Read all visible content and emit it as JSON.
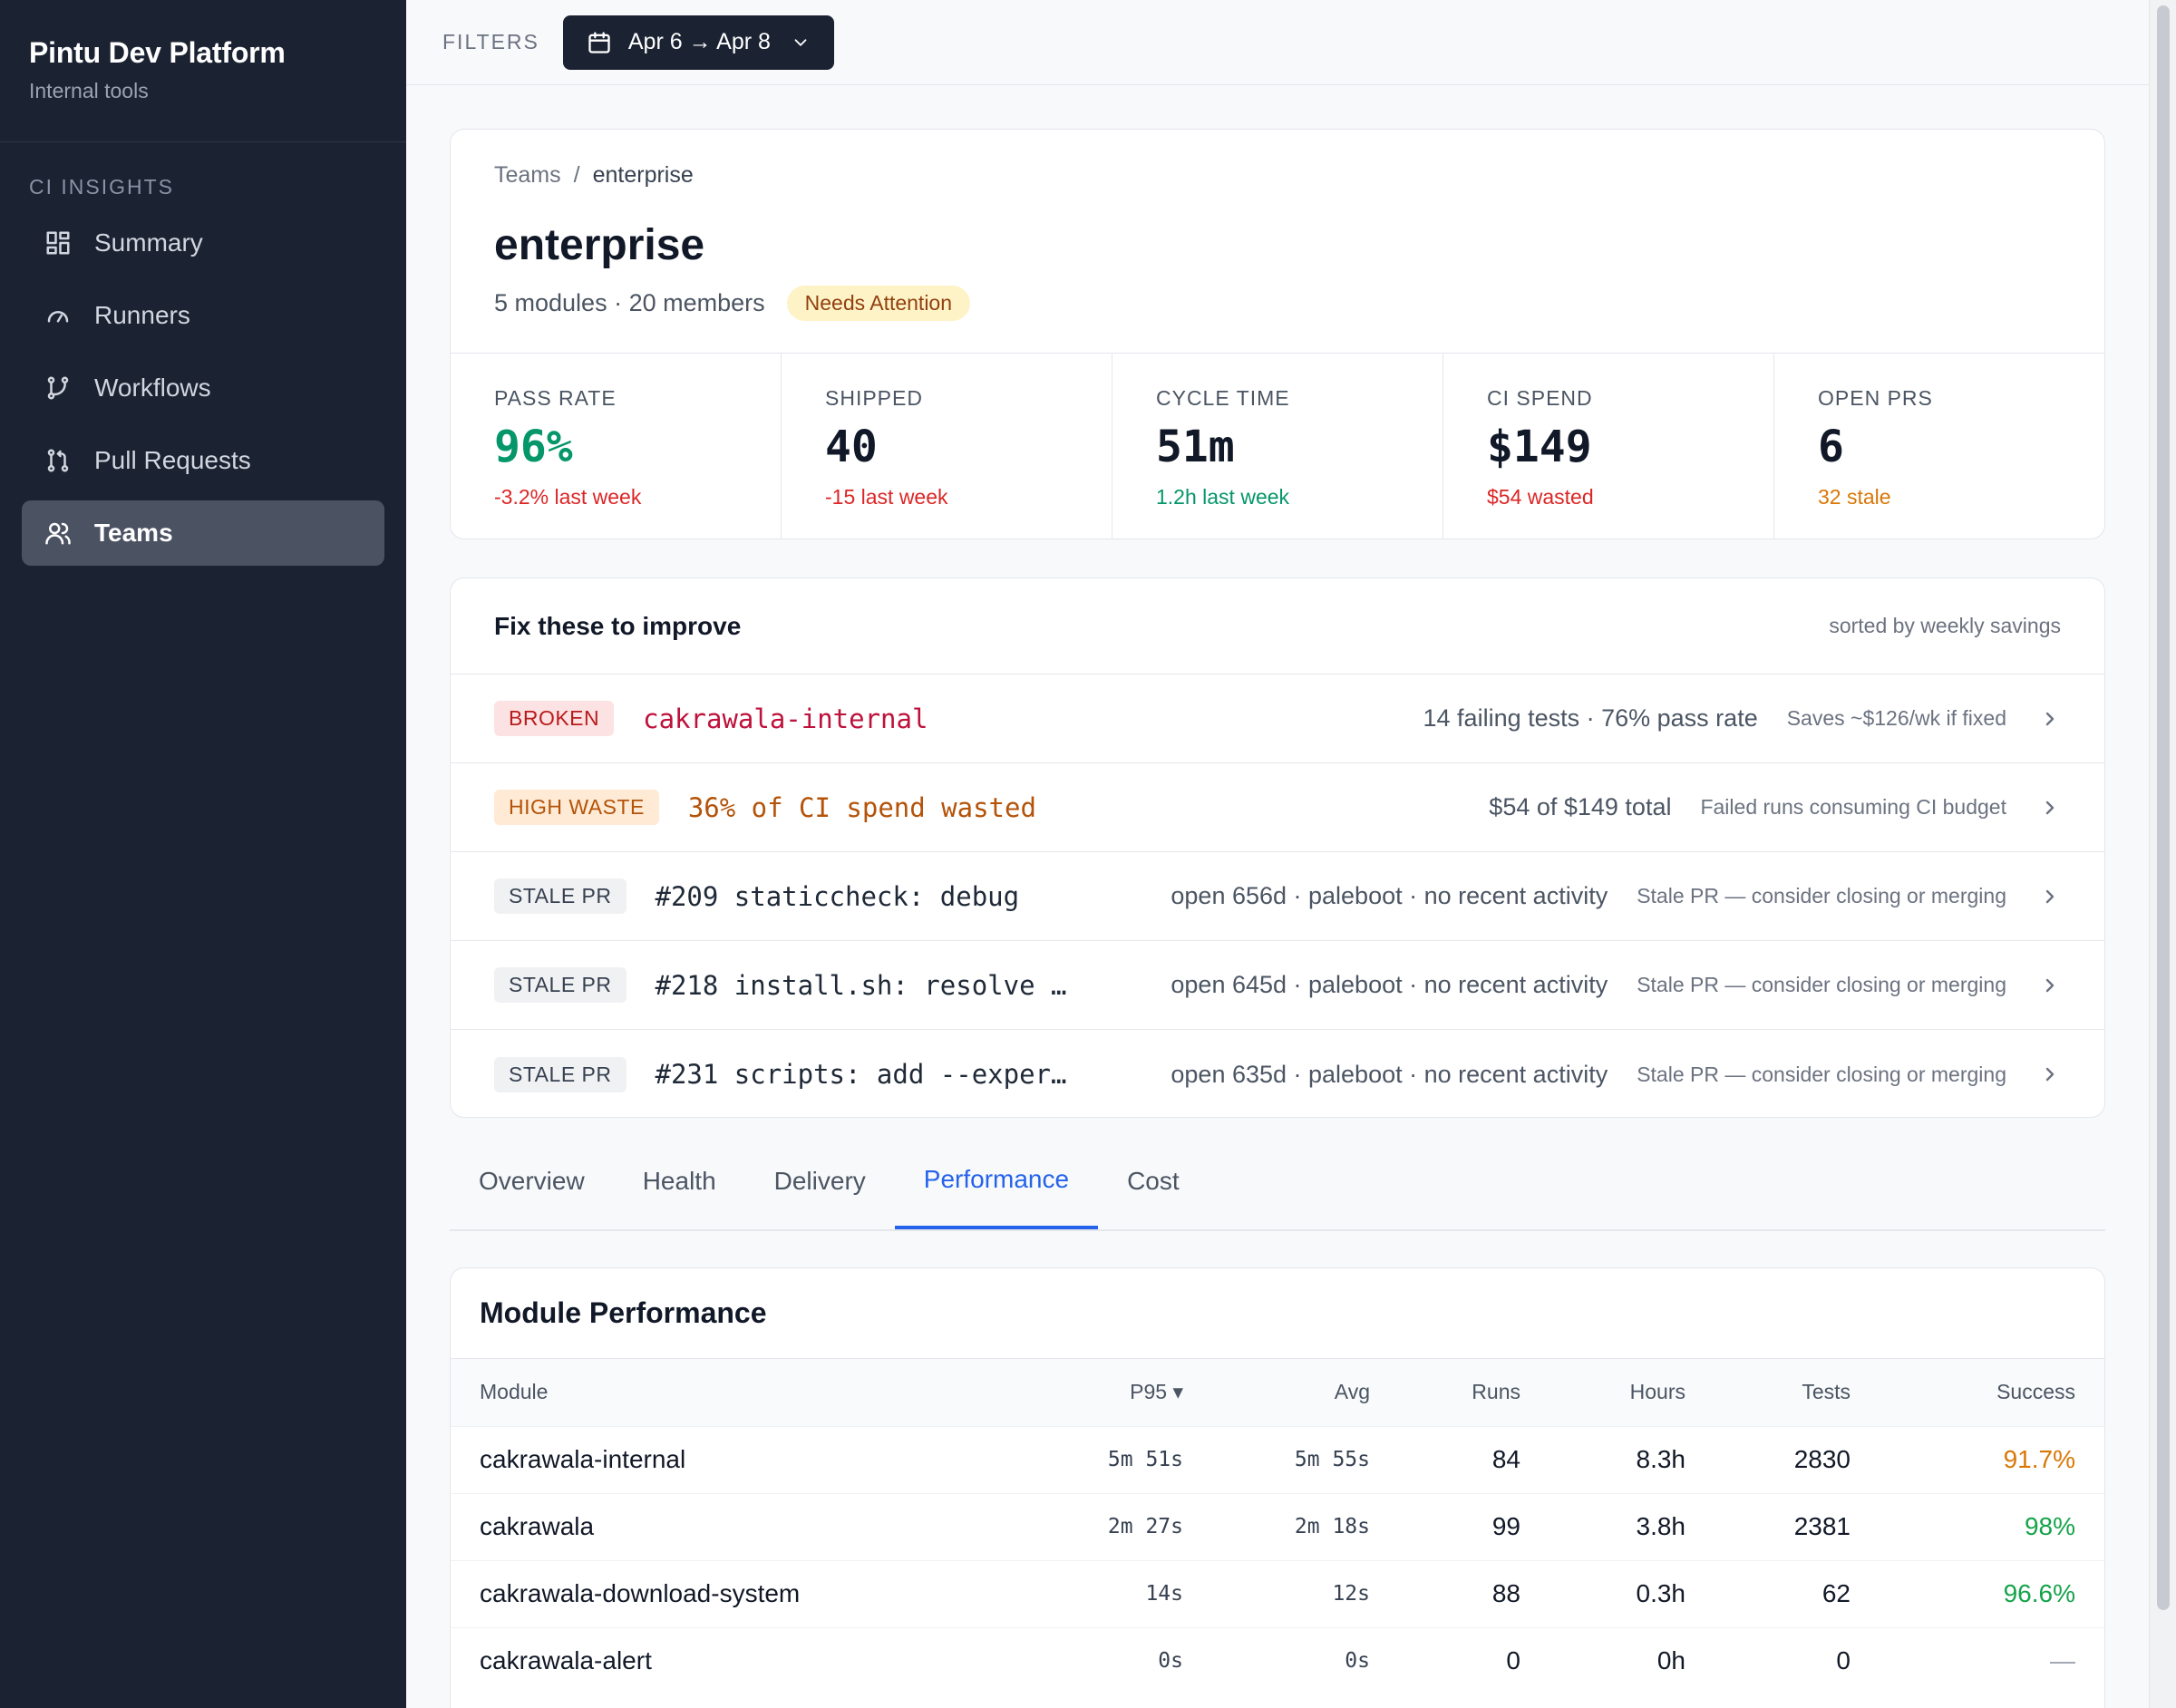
{
  "brand": {
    "title": "Pintu Dev Platform",
    "subtitle": "Internal tools"
  },
  "sidebar": {
    "section": "CI INSIGHTS",
    "items": [
      {
        "label": "Summary",
        "icon": "grid-icon"
      },
      {
        "label": "Runners",
        "icon": "gauge-icon"
      },
      {
        "label": "Workflows",
        "icon": "git-branch-icon"
      },
      {
        "label": "Pull Requests",
        "icon": "git-pull-request-icon"
      },
      {
        "label": "Teams",
        "icon": "users-icon",
        "active": true
      }
    ]
  },
  "filters": {
    "label": "FILTERS",
    "date_range": "Apr 6 → Apr 8"
  },
  "team": {
    "breadcrumb_root": "Teams",
    "breadcrumb_sep": "/",
    "breadcrumb_current": "enterprise",
    "name": "enterprise",
    "meta": "5 modules · 20 members",
    "status": "Needs Attention",
    "stats": [
      {
        "label": "PASS RATE",
        "value": "96%",
        "sub": "-3.2% last week",
        "value_color": "#059669",
        "sub_color": "#dc2626"
      },
      {
        "label": "SHIPPED",
        "value": "40",
        "sub": "-15 last week",
        "value_color": "#111827",
        "sub_color": "#dc2626"
      },
      {
        "label": "CYCLE TIME",
        "value": "51m",
        "sub": "1.2h last week",
        "value_color": "#111827",
        "sub_color": "#059669"
      },
      {
        "label": "CI SPEND",
        "value": "$149",
        "sub": "$54 wasted",
        "value_color": "#111827",
        "sub_color": "#dc2626"
      },
      {
        "label": "OPEN PRS",
        "value": "6",
        "sub": "32 stale",
        "value_color": "#111827",
        "sub_color": "#d97706"
      }
    ]
  },
  "fix": {
    "title": "Fix these to improve",
    "sort": "sorted by weekly savings",
    "rows": [
      {
        "tag": "BROKEN",
        "name": "cakrawala-internal",
        "detail": "14 failing tests · 76% pass rate",
        "hint": "Saves ~$126/wk if fixed"
      },
      {
        "tag": "HIGH WASTE",
        "name": "36% of CI spend wasted",
        "detail": "$54 of $149 total",
        "hint": "Failed runs consuming CI budget"
      },
      {
        "tag": "STALE PR",
        "name": "#209 staticcheck: debug",
        "detail": "open 656d · paleboot · no recent activity",
        "hint": "Stale PR — consider closing or merging"
      },
      {
        "tag": "STALE PR",
        "name": "#218 install.sh: resolve …",
        "detail": "open 645d · paleboot · no recent activity",
        "hint": "Stale PR — consider closing or merging"
      },
      {
        "tag": "STALE PR",
        "name": "#231 scripts: add --exper…",
        "detail": "open 635d · paleboot · no recent activity",
        "hint": "Stale PR — consider closing or merging"
      }
    ]
  },
  "tabs": [
    "Overview",
    "Health",
    "Delivery",
    "Performance",
    "Cost"
  ],
  "active_tab": "Performance",
  "perf": {
    "title": "Module Performance",
    "columns": [
      "Module",
      "P95 ▾",
      "Avg",
      "Runs",
      "Hours",
      "Tests",
      "Success"
    ],
    "rows": [
      {
        "module": "cakrawala-internal",
        "p95": "5m 51s",
        "avg": "5m 55s",
        "runs": "84",
        "hours": "8.3h",
        "tests": "2830",
        "success": "91.7%",
        "success_color": "#d97706"
      },
      {
        "module": "cakrawala",
        "p95": "2m 27s",
        "avg": "2m 18s",
        "runs": "99",
        "hours": "3.8h",
        "tests": "2381",
        "success": "98%",
        "success_color": "#16a34a"
      },
      {
        "module": "cakrawala-download-system",
        "p95": "14s",
        "avg": "12s",
        "runs": "88",
        "hours": "0.3h",
        "tests": "62",
        "success": "96.6%",
        "success_color": "#16a34a"
      },
      {
        "module": "cakrawala-alert",
        "p95": "0s",
        "avg": "0s",
        "runs": "0",
        "hours": "0h",
        "tests": "0",
        "success": "—",
        "success_color": "#9ca3af"
      }
    ]
  }
}
